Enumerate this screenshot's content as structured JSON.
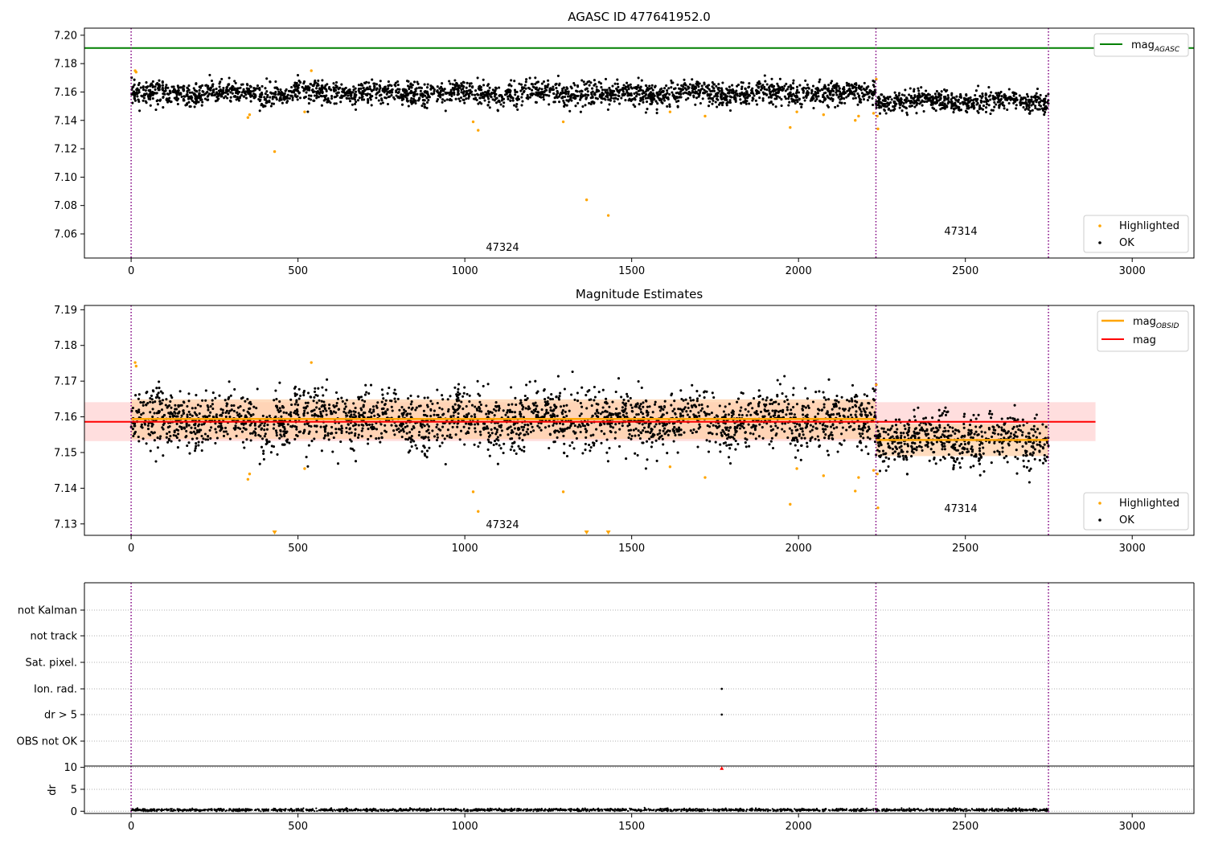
{
  "figure": {
    "colors": {
      "ok": "#000000",
      "highlighted": "#ffa500",
      "mag_agasc": "#008000",
      "mag": "#ff0000",
      "mag_obsid": "#ffa500",
      "obs_boundary": "#800080",
      "band_mag": "#ffd0d0",
      "band_obsid": "#ffd0a8",
      "flag_dot": "#000000",
      "dr_flag": "#ff0000"
    }
  },
  "chart_data": [
    {
      "type": "scatter",
      "title": "AGASC ID 477641952.0",
      "xlim": [
        -140,
        3185
      ],
      "ylim": [
        7.043,
        7.205
      ],
      "xticks": [
        "0",
        "500",
        "1000",
        "1500",
        "2000",
        "2500",
        "3000"
      ],
      "yticks": [
        "7.06",
        "7.08",
        "7.10",
        "7.12",
        "7.14",
        "7.16",
        "7.18",
        "7.20"
      ],
      "obs_boundaries_x": [
        0,
        2232,
        2749
      ],
      "obs_labels": [
        {
          "text": "47324",
          "x": 1115,
          "y": 7.05
        },
        {
          "text": "47314",
          "x": 2490,
          "y": 7.062
        }
      ],
      "mag_agasc": 7.191,
      "legend_upper": [
        "mag",
        "AGASC"
      ],
      "legend_lower": [
        "Highlighted",
        "OK"
      ],
      "series": [
        {
          "name": "OK",
          "segments": [
            {
              "x0": 0,
              "x1": 2232,
              "mean": 7.159,
              "spread": 0.004
            },
            {
              "x0": 2232,
              "x1": 2749,
              "mean": 7.1535,
              "spread": 0.0035
            }
          ]
        },
        {
          "name": "Highlighted",
          "points": [
            [
              12,
              7.175
            ],
            [
              15,
              7.174
            ],
            [
              350,
              7.142
            ],
            [
              355,
              7.144
            ],
            [
              430,
              7.118
            ],
            [
              520,
              7.146
            ],
            [
              540,
              7.175
            ],
            [
              1025,
              7.139
            ],
            [
              1040,
              7.133
            ],
            [
              1295,
              7.139
            ],
            [
              1365,
              7.084
            ],
            [
              1430,
              7.073
            ],
            [
              1615,
              7.146
            ],
            [
              1720,
              7.143
            ],
            [
              1975,
              7.135
            ],
            [
              1995,
              7.146
            ],
            [
              2075,
              7.144
            ],
            [
              2170,
              7.14
            ],
            [
              2180,
              7.143
            ],
            [
              2225,
              7.145
            ],
            [
              2233,
              7.169
            ],
            [
              2236,
              7.143
            ],
            [
              2238,
              7.134
            ]
          ]
        }
      ]
    },
    {
      "type": "scatter",
      "title": "Magnitude Estimates",
      "xlim": [
        -140,
        3185
      ],
      "ylim": [
        7.1268,
        7.1912
      ],
      "xticks": [
        "0",
        "500",
        "1000",
        "1500",
        "2000",
        "2500",
        "3000"
      ],
      "yticks": [
        "7.13",
        "7.14",
        "7.15",
        "7.16",
        "7.17",
        "7.18",
        "7.19"
      ],
      "obs_boundaries_x": [
        0,
        2232,
        2749
      ],
      "obs_labels": [
        {
          "text": "47324",
          "x": 1115,
          "y": 7.1288
        },
        {
          "text": "47314",
          "x": 2490,
          "y": 7.1335
        }
      ],
      "mag": {
        "value": 7.1586,
        "lo": 7.1532,
        "hi": 7.1641,
        "x0": -140,
        "x1": 2890
      },
      "mag_obsid": [
        {
          "x0": 0,
          "x1": 2232,
          "value": 7.1594,
          "lo": 7.1538,
          "hi": 7.1649
        },
        {
          "x0": 2232,
          "x1": 2749,
          "value": 7.1535,
          "lo": 7.149,
          "hi": 7.158
        }
      ],
      "legend_upper": [
        "mag",
        "OBSID",
        "mag"
      ],
      "legend_lower": [
        "Highlighted",
        "OK"
      ],
      "off_scale_low_x": [
        430,
        1365,
        1430
      ],
      "series": [
        {
          "name": "OK",
          "segments": [
            {
              "x0": 0,
              "x1": 2232,
              "mean": 7.159,
              "spread": 0.004
            },
            {
              "x0": 2232,
              "x1": 2749,
              "mean": 7.1535,
              "spread": 0.0035
            }
          ]
        },
        {
          "name": "Highlighted",
          "points": [
            [
              12,
              7.1752
            ],
            [
              15,
              7.1742
            ],
            [
              350,
              7.1425
            ],
            [
              355,
              7.144
            ],
            [
              520,
              7.1455
            ],
            [
              540,
              7.1752
            ],
            [
              1025,
              7.139
            ],
            [
              1040,
              7.1335
            ],
            [
              1295,
              7.139
            ],
            [
              1615,
              7.146
            ],
            [
              1720,
              7.143
            ],
            [
              1975,
              7.1355
            ],
            [
              1995,
              7.1455
            ],
            [
              2075,
              7.1435
            ],
            [
              2170,
              7.1392
            ],
            [
              2180,
              7.143
            ],
            [
              2225,
              7.145
            ],
            [
              2233,
              7.169
            ],
            [
              2236,
              7.144
            ],
            [
              2238,
              7.1345
            ]
          ]
        }
      ]
    },
    {
      "type": "scatter",
      "xlim": [
        -140,
        3185
      ],
      "xticks": [
        "0",
        "500",
        "1000",
        "1500",
        "2000",
        "2500",
        "3000"
      ],
      "flag_labels": [
        "not Kalman",
        "not track",
        "Sat. pixel.",
        "Ion. rad.",
        "dr > 5",
        "OBS not OK"
      ],
      "flag_points": [
        {
          "flag": "Ion. rad.",
          "x": 1770
        },
        {
          "flag": "dr > 5",
          "x": 1770
        }
      ],
      "obs_boundaries_x": [
        0,
        2232,
        2749
      ]
    },
    {
      "type": "scatter",
      "ylabel": "dr",
      "xlim": [
        -140,
        3185
      ],
      "ylim": [
        -0.5,
        10.3
      ],
      "yticks": [
        "0",
        "5",
        "10"
      ],
      "xticks": [
        "0",
        "500",
        "1000",
        "1500",
        "2000",
        "2500",
        "3000"
      ],
      "obs_boundaries_x": [
        0,
        2232,
        2749
      ],
      "dr_outlier": {
        "x": 1770,
        "y": 9.8
      },
      "series": [
        {
          "name": "dr",
          "segments": [
            {
              "x0": 0,
              "x1": 2749,
              "mean": 0.3,
              "spread": 0.15
            }
          ]
        }
      ]
    }
  ]
}
